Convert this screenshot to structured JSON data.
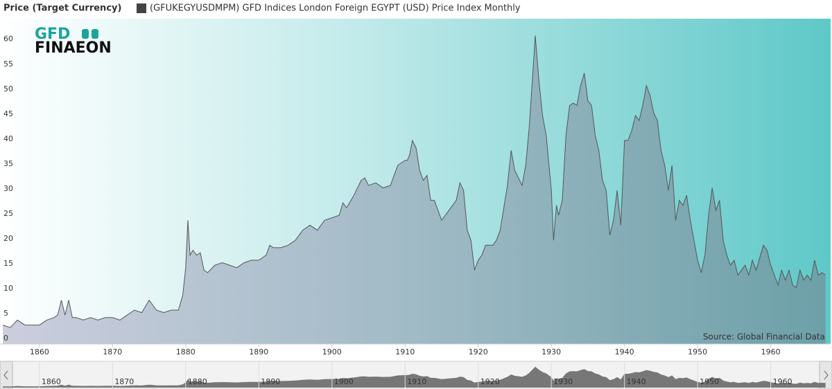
{
  "chart_data": {
    "type": "area",
    "title": "Price (Target Currency)",
    "logo": [
      "GFD",
      "FINAEON"
    ],
    "source": "Source: Global Financial Data",
    "series": [
      {
        "name": "(GFUKEGYUSDMPM) GFD Indices London Foreign EGYPT (USD) Price Index Monthly",
        "color": "#555555",
        "x": [
          1855,
          1856,
          1857,
          1858,
          1859,
          1860,
          1861,
          1862,
          1862.5,
          1863,
          1863.5,
          1864,
          1864.5,
          1865,
          1866,
          1867,
          1868,
          1869,
          1870,
          1871,
          1872,
          1873,
          1874,
          1875,
          1876,
          1877,
          1878,
          1879,
          1879.6,
          1880,
          1880.3,
          1880.6,
          1881,
          1881.5,
          1882,
          1882.5,
          1883,
          1884,
          1885,
          1886,
          1887,
          1888,
          1889,
          1890,
          1891,
          1891.5,
          1892,
          1893,
          1894,
          1895,
          1896,
          1897,
          1898,
          1899,
          1900,
          1901,
          1901.5,
          1902,
          1903,
          1904,
          1904.5,
          1905,
          1906,
          1907,
          1908,
          1909,
          1910,
          1910.3,
          1910.6,
          1911,
          1911.5,
          1912,
          1912.5,
          1913,
          1913.5,
          1914,
          1915,
          1916,
          1917,
          1917.5,
          1918,
          1918.5,
          1919,
          1919.5,
          1920,
          1920.5,
          1921,
          1922,
          1922.5,
          1923,
          1924,
          1924.5,
          1925,
          1926,
          1926.5,
          1927,
          1927.4,
          1927.8,
          1928.3,
          1928.8,
          1929.3,
          1930,
          1930.3,
          1930.7,
          1931,
          1931.5,
          1932,
          1932.5,
          1933,
          1933.5,
          1934,
          1934.5,
          1935,
          1935.5,
          1936,
          1936.5,
          1937,
          1937.5,
          1938,
          1938.5,
          1939,
          1939.5,
          1940,
          1940.5,
          1941,
          1941.5,
          1942,
          1942.5,
          1943,
          1943.5,
          1944,
          1944.5,
          1945,
          1945.5,
          1946,
          1946.5,
          1947,
          1947.5,
          1948,
          1948.5,
          1949,
          1949.5,
          1950,
          1950.5,
          1951,
          1951.5,
          1952,
          1952.5,
          1953,
          1953.5,
          1954,
          1954.5,
          1955,
          1955.5,
          1956,
          1956.5,
          1957,
          1957.5,
          1958,
          1958.5,
          1959,
          1959.5,
          1960,
          1960.5,
          1961,
          1961.5,
          1962,
          1962.5,
          1963,
          1963.5,
          1964,
          1964.5,
          1965,
          1965.5,
          1966,
          1966.5,
          1967,
          1967.5
        ],
        "values": [
          3,
          2.5,
          4,
          3,
          3,
          3,
          4,
          4.5,
          5,
          8,
          5,
          8,
          4.5,
          4.5,
          4,
          4.5,
          4,
          4.5,
          4.5,
          4,
          5,
          6,
          5.5,
          8,
          6,
          5.5,
          6,
          6,
          9,
          14.5,
          24,
          17,
          18,
          17,
          17.5,
          14,
          13.5,
          15,
          15.5,
          15,
          14.5,
          15.5,
          16,
          16,
          17,
          19,
          18.5,
          18.5,
          19,
          20,
          22,
          23,
          22,
          24,
          24.5,
          25,
          27.5,
          26.5,
          29,
          32,
          32.5,
          31,
          31.5,
          30.5,
          31,
          35,
          36,
          36,
          37,
          40,
          38.5,
          34,
          32,
          33,
          28,
          28,
          24,
          26,
          28,
          31.5,
          30,
          22,
          20,
          14,
          16,
          17,
          19,
          19,
          20,
          22,
          31,
          38,
          34,
          31,
          35,
          43,
          52,
          61,
          52,
          45,
          41,
          30,
          20,
          27,
          25,
          28,
          41,
          47,
          47.5,
          47,
          51,
          53.5,
          48,
          47,
          41,
          38,
          32,
          30,
          21,
          24,
          30,
          23,
          40,
          40,
          42,
          45,
          44,
          47,
          51,
          49,
          45.5,
          44,
          38,
          35,
          30,
          35,
          24,
          28,
          27,
          29,
          24,
          20,
          16,
          13.5,
          17,
          25,
          30.5,
          26,
          28,
          20,
          17,
          15,
          16,
          13,
          14,
          15,
          13,
          16,
          14,
          16.5,
          19,
          18,
          15,
          13,
          11,
          14,
          12,
          14,
          11,
          10.5,
          14,
          12,
          13,
          12,
          16,
          13,
          13.5,
          13
        ]
      }
    ],
    "xlim": [
      1854.8,
      1968
    ],
    "xticks": [
      1860,
      1870,
      1880,
      1890,
      1900,
      1910,
      1920,
      1930,
      1940,
      1950,
      1960
    ],
    "ylim": [
      -0.8,
      64.4
    ],
    "yticks": [
      0,
      5,
      10,
      15,
      20,
      25,
      30,
      35,
      40,
      45,
      50,
      55,
      60
    ]
  }
}
